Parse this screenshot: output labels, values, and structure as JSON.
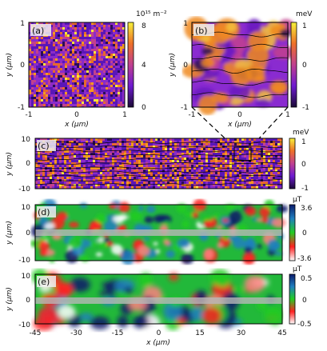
{
  "chart_data": [
    {
      "id": "a",
      "type": "heatmap",
      "panel_label": "(a)",
      "xlabel": "x (μm)",
      "ylabel": "y (μm)",
      "xlim": [
        -1,
        1
      ],
      "ylim": [
        -1,
        1
      ],
      "x_ticks": [
        "-1",
        "0",
        "1"
      ],
      "y_ticks": [
        "1",
        "0",
        "-1"
      ],
      "colorbar": {
        "unit": "10¹⁵ m⁻²",
        "ticks": [
          "8",
          "4",
          "0"
        ],
        "range": [
          0,
          8
        ],
        "colormap": [
          "#1a0a35",
          "#6e1ad0",
          "#c04090",
          "#ee7028",
          "#f7f23a"
        ]
      }
    },
    {
      "id": "b",
      "type": "heatmap",
      "panel_label": "(b)",
      "xlabel": "x (μm)",
      "ylabel": "y (μm)",
      "xlim": [
        -1,
        1
      ],
      "ylim": [
        -1,
        1
      ],
      "x_ticks": [
        "-1",
        "0",
        "1"
      ],
      "y_ticks": [
        "1",
        "0",
        "-1"
      ],
      "colorbar": {
        "unit": "meV",
        "ticks": [
          "1",
          "0",
          "-1"
        ],
        "range": [
          -1,
          1
        ],
        "colormap": [
          "#1a0a35",
          "#6e1ad0",
          "#c04090",
          "#ee7028",
          "#f7f23a"
        ]
      }
    },
    {
      "id": "c",
      "type": "heatmap",
      "panel_label": "(c)",
      "ylabel": "y (μm)",
      "xlim": [
        -45,
        45
      ],
      "ylim": [
        -10,
        10
      ],
      "y_ticks": [
        "10",
        "0",
        "-10"
      ],
      "colorbar": {
        "unit": "meV",
        "ticks": [
          "1",
          "0",
          "-1"
        ],
        "range": [
          -1,
          1
        ],
        "colormap": [
          "#1a0a35",
          "#6e1ad0",
          "#c04090",
          "#ee7028",
          "#f7f23a"
        ]
      }
    },
    {
      "id": "d",
      "type": "heatmap",
      "panel_label": "(d)",
      "ylabel": "y (μm)",
      "xlim": [
        -45,
        45
      ],
      "ylim": [
        -10,
        10
      ],
      "y_ticks": [
        "10",
        "0",
        "-10"
      ],
      "colorbar": {
        "unit": "μT",
        "ticks": [
          "3.6",
          "0",
          "-3.6"
        ],
        "range": [
          -3.6,
          3.6
        ],
        "colormap": [
          "#ffffff",
          "#ff2020",
          "#22cc22",
          "#1f7fbf",
          "#0a1a6a"
        ]
      }
    },
    {
      "id": "e",
      "type": "heatmap",
      "panel_label": "(e)",
      "xlabel": "x (μm)",
      "ylabel": "y (μm)",
      "xlim": [
        -45,
        45
      ],
      "ylim": [
        -10,
        10
      ],
      "x_ticks": [
        "-45",
        "-30",
        "-15",
        "0",
        "15",
        "30",
        "45"
      ],
      "y_ticks": [
        "10",
        "0",
        "-10"
      ],
      "colorbar": {
        "unit": "μT",
        "ticks": [
          "0.5",
          "0",
          "-0.5"
        ],
        "range": [
          -0.5,
          0.5
        ],
        "colormap": [
          "#ffffff",
          "#ff2020",
          "#22cc22",
          "#1f7fbf",
          "#0a1a6a"
        ]
      }
    }
  ]
}
